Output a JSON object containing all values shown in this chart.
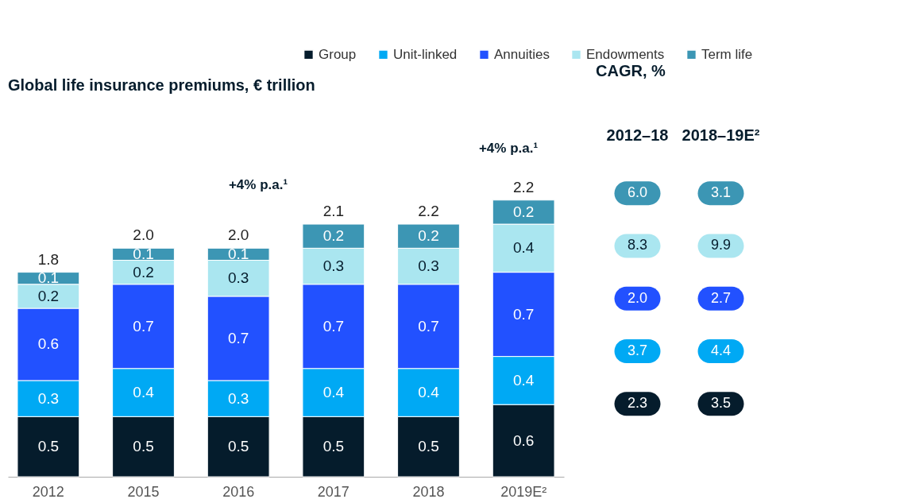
{
  "chart_data": [
    {
      "type": "bar",
      "title": "Global life insurance premiums, € trillion",
      "stacked": true,
      "data_labels": true,
      "legend": "top right",
      "grid": false,
      "categories": [
        "2012",
        "2015",
        "2016",
        "2017",
        "2018",
        "2019E²"
      ],
      "series": [
        {
          "name": "Group",
          "color": "#051c2c",
          "values": [
            0.5,
            0.5,
            0.5,
            0.5,
            0.5,
            0.6
          ]
        },
        {
          "name": "Unit-linked",
          "color": "#00a9f4",
          "values": [
            0.3,
            0.4,
            0.3,
            0.4,
            0.4,
            0.4
          ]
        },
        {
          "name": "Annuities",
          "color": "#2251ff",
          "values": [
            0.6,
            0.7,
            0.7,
            0.7,
            0.7,
            0.7
          ]
        },
        {
          "name": "Endowments",
          "color": "#aae6f0",
          "values": [
            0.2,
            0.2,
            0.3,
            0.3,
            0.3,
            0.4
          ]
        },
        {
          "name": "Term life",
          "color": "#3c96b4",
          "values": [
            0.1,
            0.1,
            0.1,
            0.2,
            0.2,
            0.2
          ]
        }
      ],
      "totals": [
        "1.8",
        "2.0",
        "2.0",
        "2.1",
        "2.2",
        "2.2"
      ],
      "annotations": [
        "+4% p.a.¹",
        "+4% p.a.¹"
      ]
    },
    {
      "type": "other",
      "title": "CAGR, %",
      "categories": [
        "2012–18",
        "2018–19E²"
      ],
      "series": [
        {
          "color": "#051c2c",
          "values": [
            2.3,
            3.5
          ],
          "value_labels": [
            "2.3",
            "3.5"
          ]
        },
        {
          "color": "#00a9f4",
          "values": [
            3.7,
            4.4
          ],
          "value_labels": [
            "3.7",
            "4.4"
          ]
        },
        {
          "color": "#2251ff",
          "values": [
            2.0,
            2.7
          ],
          "value_labels": [
            "2.0",
            "2.7"
          ]
        },
        {
          "color": "#aae6f0",
          "values": [
            8.3,
            9.9
          ],
          "value_labels": [
            "8.3",
            "9.9"
          ]
        },
        {
          "color": "#3c96b4",
          "values": [
            6.0,
            3.1
          ],
          "value_labels": [
            "6.0",
            "3.1"
          ]
        }
      ]
    }
  ]
}
